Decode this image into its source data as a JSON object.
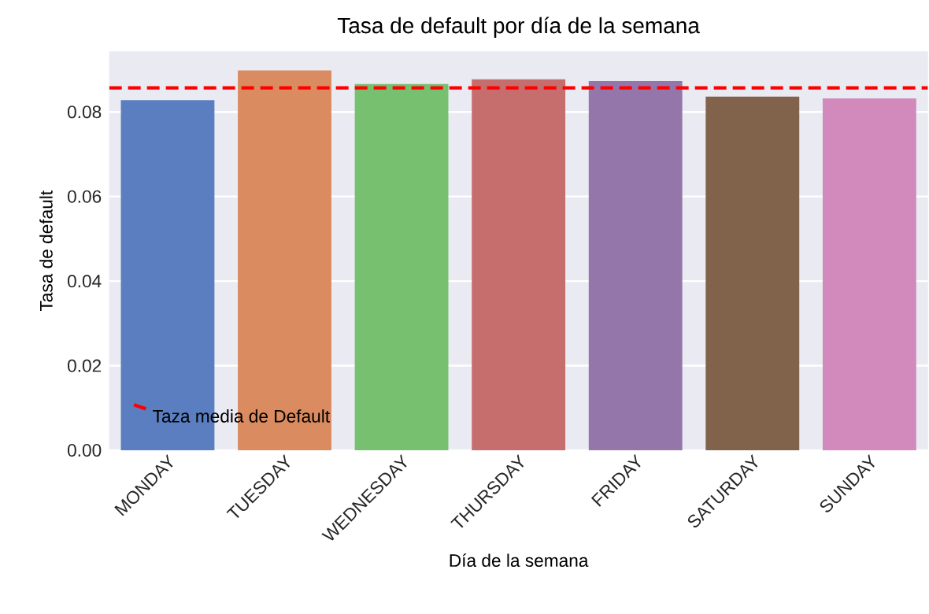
{
  "chart_data": {
    "type": "bar",
    "title": "Tasa de default por día de la semana",
    "xlabel": "Día de la semana",
    "ylabel": "Tasa de default",
    "categories": [
      "MONDAY",
      "TUESDAY",
      "WEDNESDAY",
      "THURSDAY",
      "FRIDAY",
      "SATURDAY",
      "SUNDAY"
    ],
    "values": [
      0.0828,
      0.0898,
      0.0866,
      0.0877,
      0.0873,
      0.0836,
      0.0832
    ],
    "colors": [
      "#5b7ec1",
      "#da8b5f",
      "#76c06f",
      "#c66e6d",
      "#9576ab",
      "#81624a",
      "#d289bc"
    ],
    "ylim": [
      0,
      0.0943
    ],
    "yticks": [
      {
        "value": 0,
        "label": "0.00"
      },
      0.02,
      0.04,
      0.06,
      0.08
    ],
    "ref_lines": [
      {
        "axis": "y",
        "value": 0.0857,
        "label": "Taza media de Default",
        "color": "#ff0000",
        "line_style": "dashed"
      }
    ],
    "grid": "y",
    "legend": "bottom left"
  }
}
